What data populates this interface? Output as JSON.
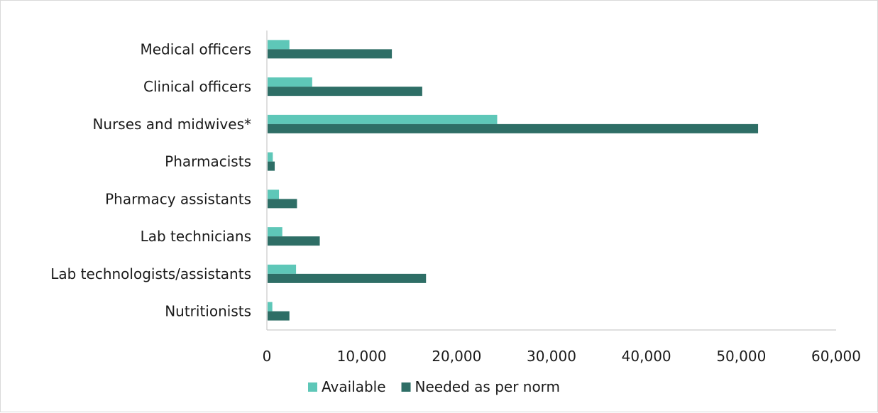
{
  "chart_data": {
    "type": "bar",
    "orientation": "horizontal",
    "categories": [
      "Medical officers",
      "Clinical officers",
      "Nurses and midwives*",
      "Pharmacists",
      "Pharmacy assistants",
      "Lab technicians",
      "Lab technologists/assistants",
      "Nutritionists"
    ],
    "series": [
      {
        "name": "Available",
        "color": "#5ec7b8",
        "values": [
          2300,
          4700,
          24200,
          550,
          1200,
          1550,
          3000,
          500
        ]
      },
      {
        "name": "Needed as per norm",
        "color": "#2e6e66",
        "values": [
          13100,
          16300,
          51700,
          750,
          3100,
          5500,
          16700,
          2300
        ]
      }
    ],
    "xlim": [
      0,
      60000
    ],
    "xticks": [
      0,
      10000,
      20000,
      30000,
      40000,
      50000,
      60000
    ],
    "xtick_labels": [
      "0",
      "10,000",
      "20,000",
      "30,000",
      "40,000",
      "50,000",
      "60,000"
    ],
    "grid": false,
    "legend_position": "bottom"
  }
}
